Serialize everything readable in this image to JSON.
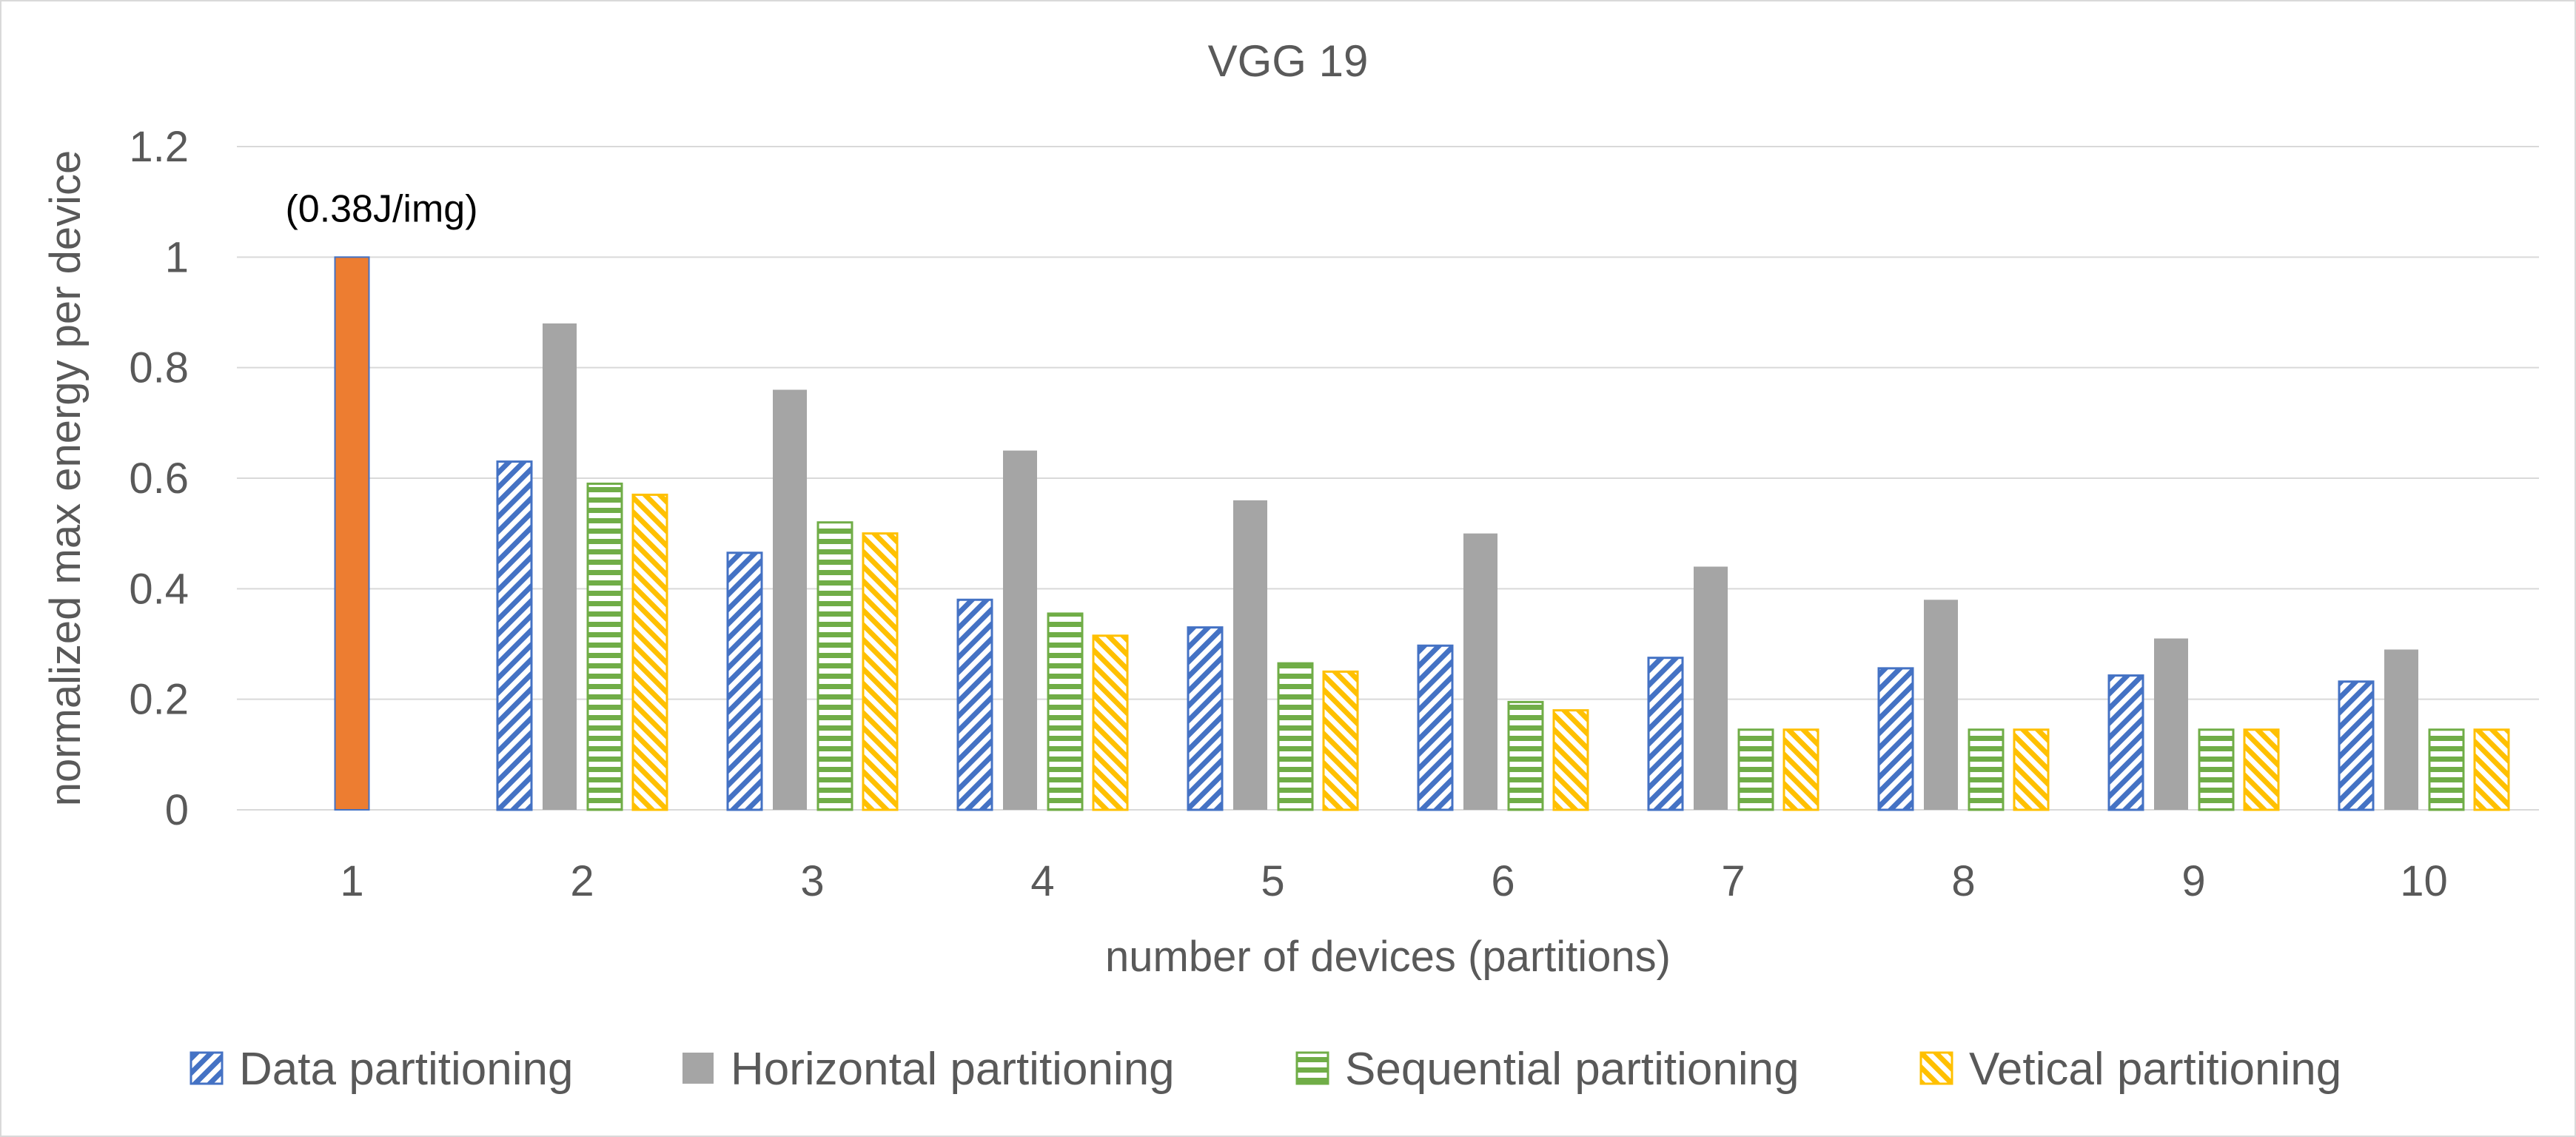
{
  "chart_data": {
    "type": "bar",
    "title": "VGG 19",
    "xlabel": "number of devices (partitions)",
    "ylabel": "normalized max energy per device",
    "ylim": [
      0,
      1.2
    ],
    "yticks": [
      "0",
      "0.2",
      "0.4",
      "0.6",
      "0.8",
      "1",
      "1.2"
    ],
    "grid": true,
    "legend_position": "bottom",
    "categories": [
      "1",
      "2",
      "3",
      "4",
      "5",
      "6",
      "7",
      "8",
      "9",
      "10"
    ],
    "baseline": {
      "category": "1",
      "value": 1.0,
      "color": "#ed7d31",
      "annotation": "(0.38J/img)"
    },
    "series": [
      {
        "name": "Data partitioning",
        "pattern": "diagonal",
        "color": "#4472c4",
        "values": [
          null,
          0.63,
          0.465,
          0.38,
          0.33,
          0.297,
          0.275,
          0.256,
          0.243,
          0.232
        ]
      },
      {
        "name": "Horizontal partitioning",
        "pattern": "solid",
        "color": "#a5a5a5",
        "values": [
          null,
          0.88,
          0.76,
          0.65,
          0.56,
          0.5,
          0.44,
          0.38,
          0.31,
          0.29
        ]
      },
      {
        "name": "Sequential partitioning",
        "pattern": "horizontal",
        "color": "#70ad47",
        "values": [
          null,
          0.59,
          0.52,
          0.355,
          0.265,
          0.195,
          0.145,
          0.145,
          0.145,
          0.145
        ]
      },
      {
        "name": "Vetical partitioning",
        "pattern": "diagonal-right",
        "color": "#ffc000",
        "values": [
          null,
          0.57,
          0.5,
          0.315,
          0.25,
          0.18,
          0.145,
          0.145,
          0.145,
          0.145
        ]
      }
    ]
  }
}
